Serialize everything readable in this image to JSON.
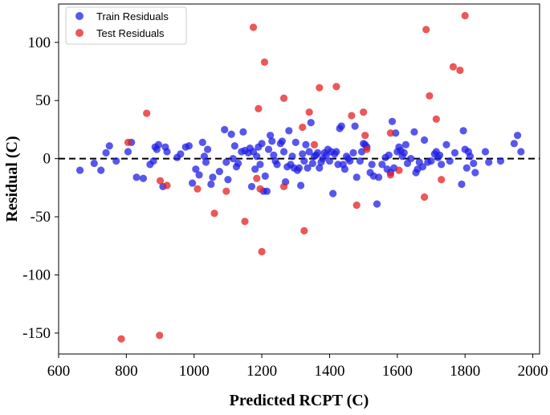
{
  "colors": {
    "train": "#1f1fe6",
    "test": "#e61f1f",
    "zero_line": "#000000"
  },
  "chart_data": {
    "type": "scatter",
    "title": "",
    "xlabel": "Predicted RCPT (C)",
    "ylabel": "Residual (C)",
    "xlim": [
      600,
      2020
    ],
    "ylim": [
      -168,
      133
    ],
    "xticks": [
      600,
      800,
      1000,
      1200,
      1400,
      1600,
      1800,
      2000
    ],
    "yticks": [
      -150,
      -100,
      -50,
      0,
      50,
      100
    ],
    "zero_line": 0,
    "legend_position": "top-left",
    "series": [
      {
        "name": "Train Residuals",
        "color": "#1f1fe6",
        "points": [
          [
            663,
            -10
          ],
          [
            705,
            -4
          ],
          [
            725,
            -10
          ],
          [
            740,
            5
          ],
          [
            750,
            11
          ],
          [
            770,
            -2
          ],
          [
            805,
            6
          ],
          [
            815,
            14
          ],
          [
            830,
            -16
          ],
          [
            850,
            -17
          ],
          [
            870,
            -5
          ],
          [
            880,
            -2
          ],
          [
            885,
            10
          ],
          [
            890,
            8
          ],
          [
            895,
            12
          ],
          [
            908,
            -24
          ],
          [
            915,
            10
          ],
          [
            920,
            6
          ],
          [
            950,
            1
          ],
          [
            960,
            4
          ],
          [
            975,
            10
          ],
          [
            985,
            11
          ],
          [
            995,
            -21
          ],
          [
            1005,
            -9
          ],
          [
            1015,
            -14
          ],
          [
            1025,
            14
          ],
          [
            1030,
            2
          ],
          [
            1035,
            -3
          ],
          [
            1040,
            8
          ],
          [
            1050,
            -22
          ],
          [
            1055,
            -16
          ],
          [
            1075,
            -11
          ],
          [
            1090,
            25
          ],
          [
            1095,
            -3
          ],
          [
            1100,
            -18
          ],
          [
            1110,
            21
          ],
          [
            1115,
            0
          ],
          [
            1120,
            11
          ],
          [
            1125,
            -7
          ],
          [
            1130,
            -4
          ],
          [
            1140,
            6
          ],
          [
            1145,
            23
          ],
          [
            1150,
            7
          ],
          [
            1160,
            5
          ],
          [
            1165,
            9
          ],
          [
            1170,
            -24
          ],
          [
            1175,
            6
          ],
          [
            1180,
            -9
          ],
          [
            1185,
            2
          ],
          [
            1190,
            10
          ],
          [
            1195,
            -5
          ],
          [
            1200,
            13
          ],
          [
            1205,
            -28
          ],
          [
            1210,
            -15
          ],
          [
            1215,
            -28
          ],
          [
            1220,
            8
          ],
          [
            1225,
            20
          ],
          [
            1230,
            15
          ],
          [
            1235,
            3
          ],
          [
            1240,
            -2
          ],
          [
            1245,
            -5
          ],
          [
            1255,
            13
          ],
          [
            1260,
            15
          ],
          [
            1265,
            6
          ],
          [
            1270,
            -20
          ],
          [
            1275,
            -7
          ],
          [
            1280,
            24
          ],
          [
            1285,
            -5
          ],
          [
            1290,
            2
          ],
          [
            1295,
            -8
          ],
          [
            1300,
            14
          ],
          [
            1305,
            -10
          ],
          [
            1310,
            -8
          ],
          [
            1315,
            -23
          ],
          [
            1320,
            4
          ],
          [
            1325,
            -2
          ],
          [
            1330,
            12
          ],
          [
            1335,
            -8
          ],
          [
            1340,
            6
          ],
          [
            1345,
            31
          ],
          [
            1350,
            -4
          ],
          [
            1355,
            2
          ],
          [
            1360,
            3
          ],
          [
            1365,
            5
          ],
          [
            1370,
            -8
          ],
          [
            1375,
            -3
          ],
          [
            1380,
            0
          ],
          [
            1385,
            5
          ],
          [
            1390,
            3
          ],
          [
            1395,
            8
          ],
          [
            1400,
            -2
          ],
          [
            1405,
            6
          ],
          [
            1410,
            -30
          ],
          [
            1415,
            4
          ],
          [
            1420,
            6
          ],
          [
            1425,
            -5
          ],
          [
            1430,
            26
          ],
          [
            1435,
            28
          ],
          [
            1440,
            -5
          ],
          [
            1445,
            -9
          ],
          [
            1450,
            2
          ],
          [
            1455,
            0
          ],
          [
            1460,
            -2
          ],
          [
            1470,
            5
          ],
          [
            1475,
            28
          ],
          [
            1480,
            -16
          ],
          [
            1490,
            -2
          ],
          [
            1495,
            6
          ],
          [
            1500,
            13
          ],
          [
            1505,
            12
          ],
          [
            1510,
            10
          ],
          [
            1520,
            -12
          ],
          [
            1525,
            -5
          ],
          [
            1530,
            -15
          ],
          [
            1540,
            -39
          ],
          [
            1545,
            -16
          ],
          [
            1555,
            -5
          ],
          [
            1565,
            1
          ],
          [
            1570,
            -9
          ],
          [
            1575,
            3
          ],
          [
            1580,
            -12
          ],
          [
            1585,
            32
          ],
          [
            1590,
            -8
          ],
          [
            1595,
            22
          ],
          [
            1600,
            6
          ],
          [
            1605,
            10
          ],
          [
            1610,
            7
          ],
          [
            1615,
            2
          ],
          [
            1620,
            5
          ],
          [
            1625,
            12
          ],
          [
            1630,
            -4
          ],
          [
            1640,
            0
          ],
          [
            1650,
            23
          ],
          [
            1655,
            -12
          ],
          [
            1660,
            -9
          ],
          [
            1665,
            -3
          ],
          [
            1675,
            -7
          ],
          [
            1680,
            16
          ],
          [
            1690,
            -3
          ],
          [
            1700,
            -2
          ],
          [
            1710,
            4
          ],
          [
            1715,
            6
          ],
          [
            1720,
            1
          ],
          [
            1725,
            3
          ],
          [
            1730,
            -5
          ],
          [
            1745,
            12
          ],
          [
            1755,
            -2
          ],
          [
            1770,
            5
          ],
          [
            1790,
            -22
          ],
          [
            1795,
            24
          ],
          [
            1800,
            8
          ],
          [
            1805,
            -8
          ],
          [
            1810,
            6
          ],
          [
            1815,
            2
          ],
          [
            1825,
            -4
          ],
          [
            1830,
            -12
          ],
          [
            1860,
            6
          ],
          [
            1870,
            -3
          ],
          [
            1905,
            -2
          ],
          [
            1945,
            13
          ],
          [
            1955,
            20
          ],
          [
            1965,
            6
          ]
        ]
      },
      {
        "name": "Test Residuals",
        "color": "#e61f1f",
        "points": [
          [
            785,
            -155
          ],
          [
            805,
            14
          ],
          [
            860,
            39
          ],
          [
            898,
            -152
          ],
          [
            900,
            -19
          ],
          [
            920,
            -23
          ],
          [
            1010,
            -26
          ],
          [
            1060,
            -47
          ],
          [
            1095,
            -28
          ],
          [
            1150,
            -54
          ],
          [
            1175,
            113
          ],
          [
            1185,
            -17
          ],
          [
            1190,
            43
          ],
          [
            1195,
            -26
          ],
          [
            1200,
            -80
          ],
          [
            1208,
            83
          ],
          [
            1265,
            -24
          ],
          [
            1265,
            52
          ],
          [
            1320,
            27
          ],
          [
            1325,
            -62
          ],
          [
            1340,
            40
          ],
          [
            1355,
            12
          ],
          [
            1370,
            61
          ],
          [
            1420,
            62
          ],
          [
            1465,
            37
          ],
          [
            1480,
            -40
          ],
          [
            1500,
            40
          ],
          [
            1505,
            20
          ],
          [
            1510,
            8
          ],
          [
            1580,
            22
          ],
          [
            1580,
            -14
          ],
          [
            1605,
            -10
          ],
          [
            1680,
            -33
          ],
          [
            1685,
            111
          ],
          [
            1695,
            54
          ],
          [
            1715,
            34
          ],
          [
            1730,
            -18
          ],
          [
            1765,
            79
          ],
          [
            1785,
            76
          ],
          [
            1800,
            123
          ]
        ]
      }
    ]
  }
}
